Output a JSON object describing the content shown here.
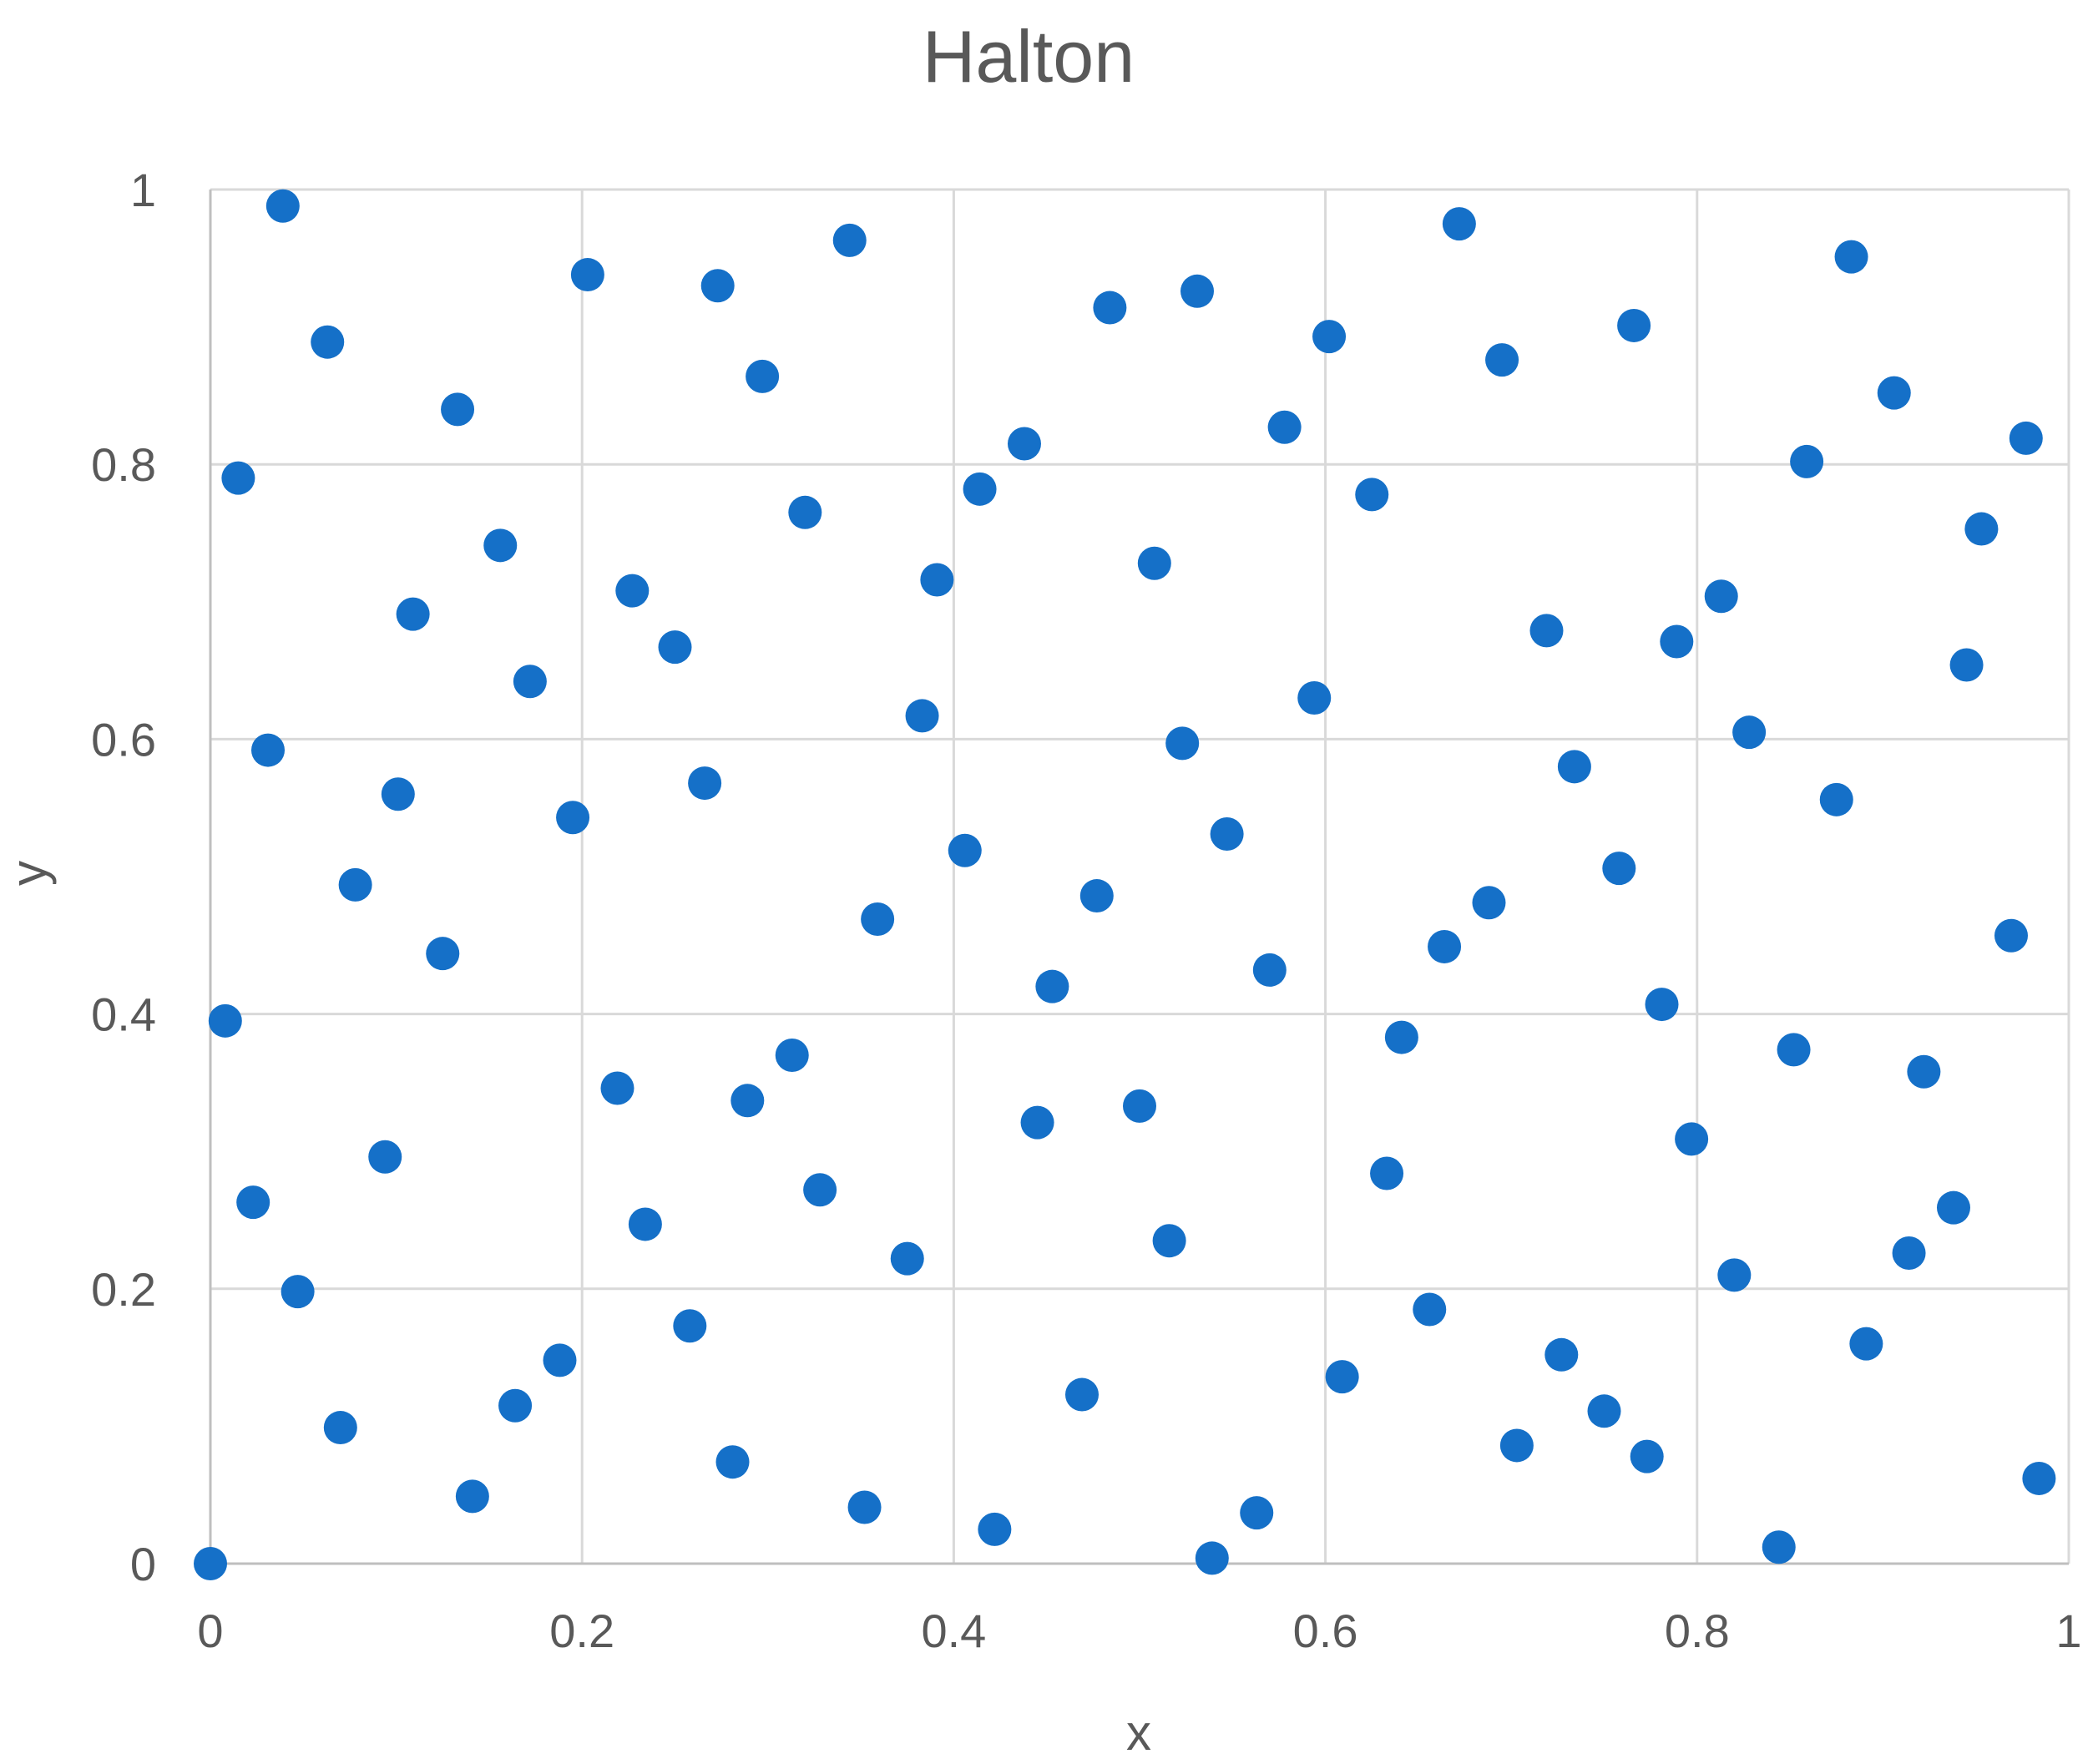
{
  "chart_data": {
    "type": "scatter",
    "title": "Halton",
    "xlabel": "x",
    "ylabel": "y",
    "xlim": [
      0,
      1
    ],
    "ylim": [
      0,
      1
    ],
    "xticks": [
      0,
      0.2,
      0.4,
      0.6,
      0.8,
      1
    ],
    "yticks": [
      0,
      0.2,
      0.4,
      0.6,
      0.8,
      1
    ],
    "xtick_labels": [
      "0",
      "0.2",
      "0.4",
      "0.6",
      "0.8",
      "1"
    ],
    "ytick_labels": [
      "0",
      "0.2",
      "0.4",
      "0.6",
      "0.8",
      "1"
    ],
    "grid": true,
    "legend": "none",
    "color": "#1570c8",
    "points": [
      [
        0.0,
        0.0
      ],
      [
        0.008,
        0.395
      ],
      [
        0.015,
        0.79
      ],
      [
        0.023,
        0.263
      ],
      [
        0.031,
        0.592
      ],
      [
        0.039,
        0.988
      ],
      [
        0.047,
        0.198
      ],
      [
        0.063,
        0.889
      ],
      [
        0.07,
        0.099
      ],
      [
        0.078,
        0.494
      ],
      [
        0.094,
        0.296
      ],
      [
        0.101,
        0.56
      ],
      [
        0.109,
        0.691
      ],
      [
        0.125,
        0.444
      ],
      [
        0.133,
        0.84
      ],
      [
        0.141,
        0.049
      ],
      [
        0.156,
        0.741
      ],
      [
        0.164,
        0.115
      ],
      [
        0.172,
        0.642
      ],
      [
        0.188,
        0.148
      ],
      [
        0.195,
        0.543
      ],
      [
        0.203,
        0.938
      ],
      [
        0.219,
        0.346
      ],
      [
        0.227,
        0.708
      ],
      [
        0.234,
        0.247
      ],
      [
        0.25,
        0.667
      ],
      [
        0.258,
        0.173
      ],
      [
        0.266,
        0.568
      ],
      [
        0.273,
        0.93
      ],
      [
        0.281,
        0.074
      ],
      [
        0.289,
        0.337
      ],
      [
        0.297,
        0.864
      ],
      [
        0.313,
        0.37
      ],
      [
        0.32,
        0.765
      ],
      [
        0.328,
        0.272
      ],
      [
        0.344,
        0.963
      ],
      [
        0.352,
        0.041
      ],
      [
        0.359,
        0.469
      ],
      [
        0.375,
        0.222
      ],
      [
        0.383,
        0.617
      ],
      [
        0.391,
        0.716
      ],
      [
        0.406,
        0.519
      ],
      [
        0.414,
        0.782
      ],
      [
        0.422,
        0.025
      ],
      [
        0.438,
        0.815
      ],
      [
        0.445,
        0.321
      ],
      [
        0.453,
        0.42
      ],
      [
        0.469,
        0.123
      ],
      [
        0.477,
        0.486
      ],
      [
        0.484,
        0.914
      ],
      [
        0.5,
        0.333
      ],
      [
        0.508,
        0.728
      ],
      [
        0.516,
        0.235
      ],
      [
        0.523,
        0.597
      ],
      [
        0.531,
        0.926
      ],
      [
        0.539,
        0.004
      ],
      [
        0.547,
        0.531
      ],
      [
        0.563,
        0.037
      ],
      [
        0.57,
        0.432
      ],
      [
        0.578,
        0.827
      ],
      [
        0.594,
        0.63
      ],
      [
        0.602,
        0.893
      ],
      [
        0.609,
        0.136
      ],
      [
        0.625,
        0.778
      ],
      [
        0.633,
        0.284
      ],
      [
        0.641,
        0.383
      ],
      [
        0.656,
        0.185
      ],
      [
        0.664,
        0.449
      ],
      [
        0.672,
        0.975
      ],
      [
        0.688,
        0.481
      ],
      [
        0.695,
        0.876
      ],
      [
        0.703,
        0.086
      ],
      [
        0.719,
        0.679
      ],
      [
        0.727,
        0.152
      ],
      [
        0.734,
        0.58
      ],
      [
        0.75,
        0.111
      ],
      [
        0.758,
        0.506
      ],
      [
        0.766,
        0.901
      ],
      [
        0.773,
        0.078
      ],
      [
        0.781,
        0.407
      ],
      [
        0.789,
        0.671
      ],
      [
        0.797,
        0.309
      ],
      [
        0.813,
        0.704
      ],
      [
        0.82,
        0.21
      ],
      [
        0.828,
        0.605
      ],
      [
        0.844,
        0.012
      ],
      [
        0.852,
        0.374
      ],
      [
        0.859,
        0.802
      ],
      [
        0.875,
        0.556
      ],
      [
        0.883,
        0.951
      ],
      [
        0.891,
        0.16
      ],
      [
        0.906,
        0.852
      ],
      [
        0.914,
        0.226
      ],
      [
        0.922,
        0.358
      ],
      [
        0.938,
        0.259
      ],
      [
        0.945,
        0.654
      ],
      [
        0.953,
        0.753
      ],
      [
        0.969,
        0.457
      ],
      [
        0.977,
        0.819
      ],
      [
        0.984,
        0.062
      ]
    ]
  }
}
